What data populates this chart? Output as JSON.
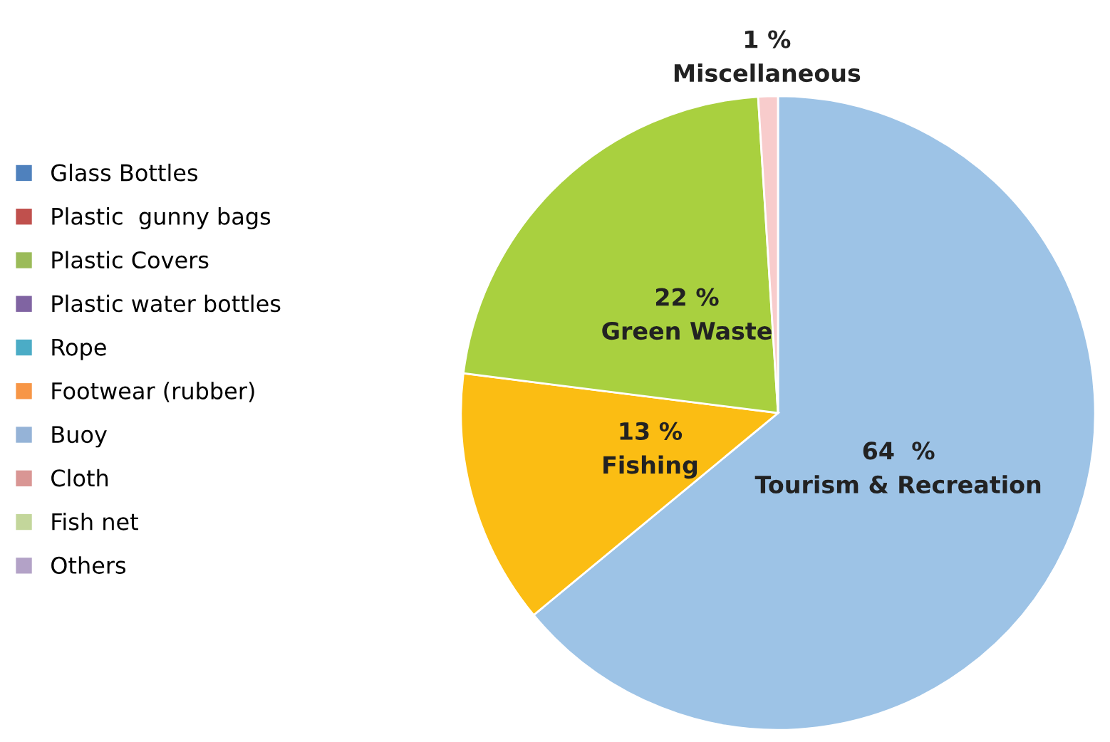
{
  "chart_data": [
    {
      "type": "pie",
      "categories": [
        "Tourism & Recreation",
        "Fishing",
        "Green Waste",
        "Miscellaneous"
      ],
      "values": [
        64,
        13,
        22,
        1
      ],
      "colors": [
        "#9dc3e6",
        "#fbbd13",
        "#a9d03f",
        "#f8cccc"
      ],
      "value_labels": [
        "64  %",
        "13 %",
        "22 %",
        "1 %"
      ]
    },
    {
      "type": "other",
      "categories": [
        "Glass Bottles",
        "Plastic  gunny bags",
        "Plastic Covers",
        "Plastic water bottles",
        "Rope",
        "Footwear (rubber)",
        "Buoy",
        "Cloth",
        "Fish net",
        "Others"
      ],
      "colors": [
        "#4f81bd",
        "#c0504d",
        "#9bbb59",
        "#8064a2",
        "#4bacc6",
        "#f79646",
        "#95b3d7",
        "#d99694",
        "#c3d69b",
        "#b3a2c7"
      ]
    }
  ]
}
